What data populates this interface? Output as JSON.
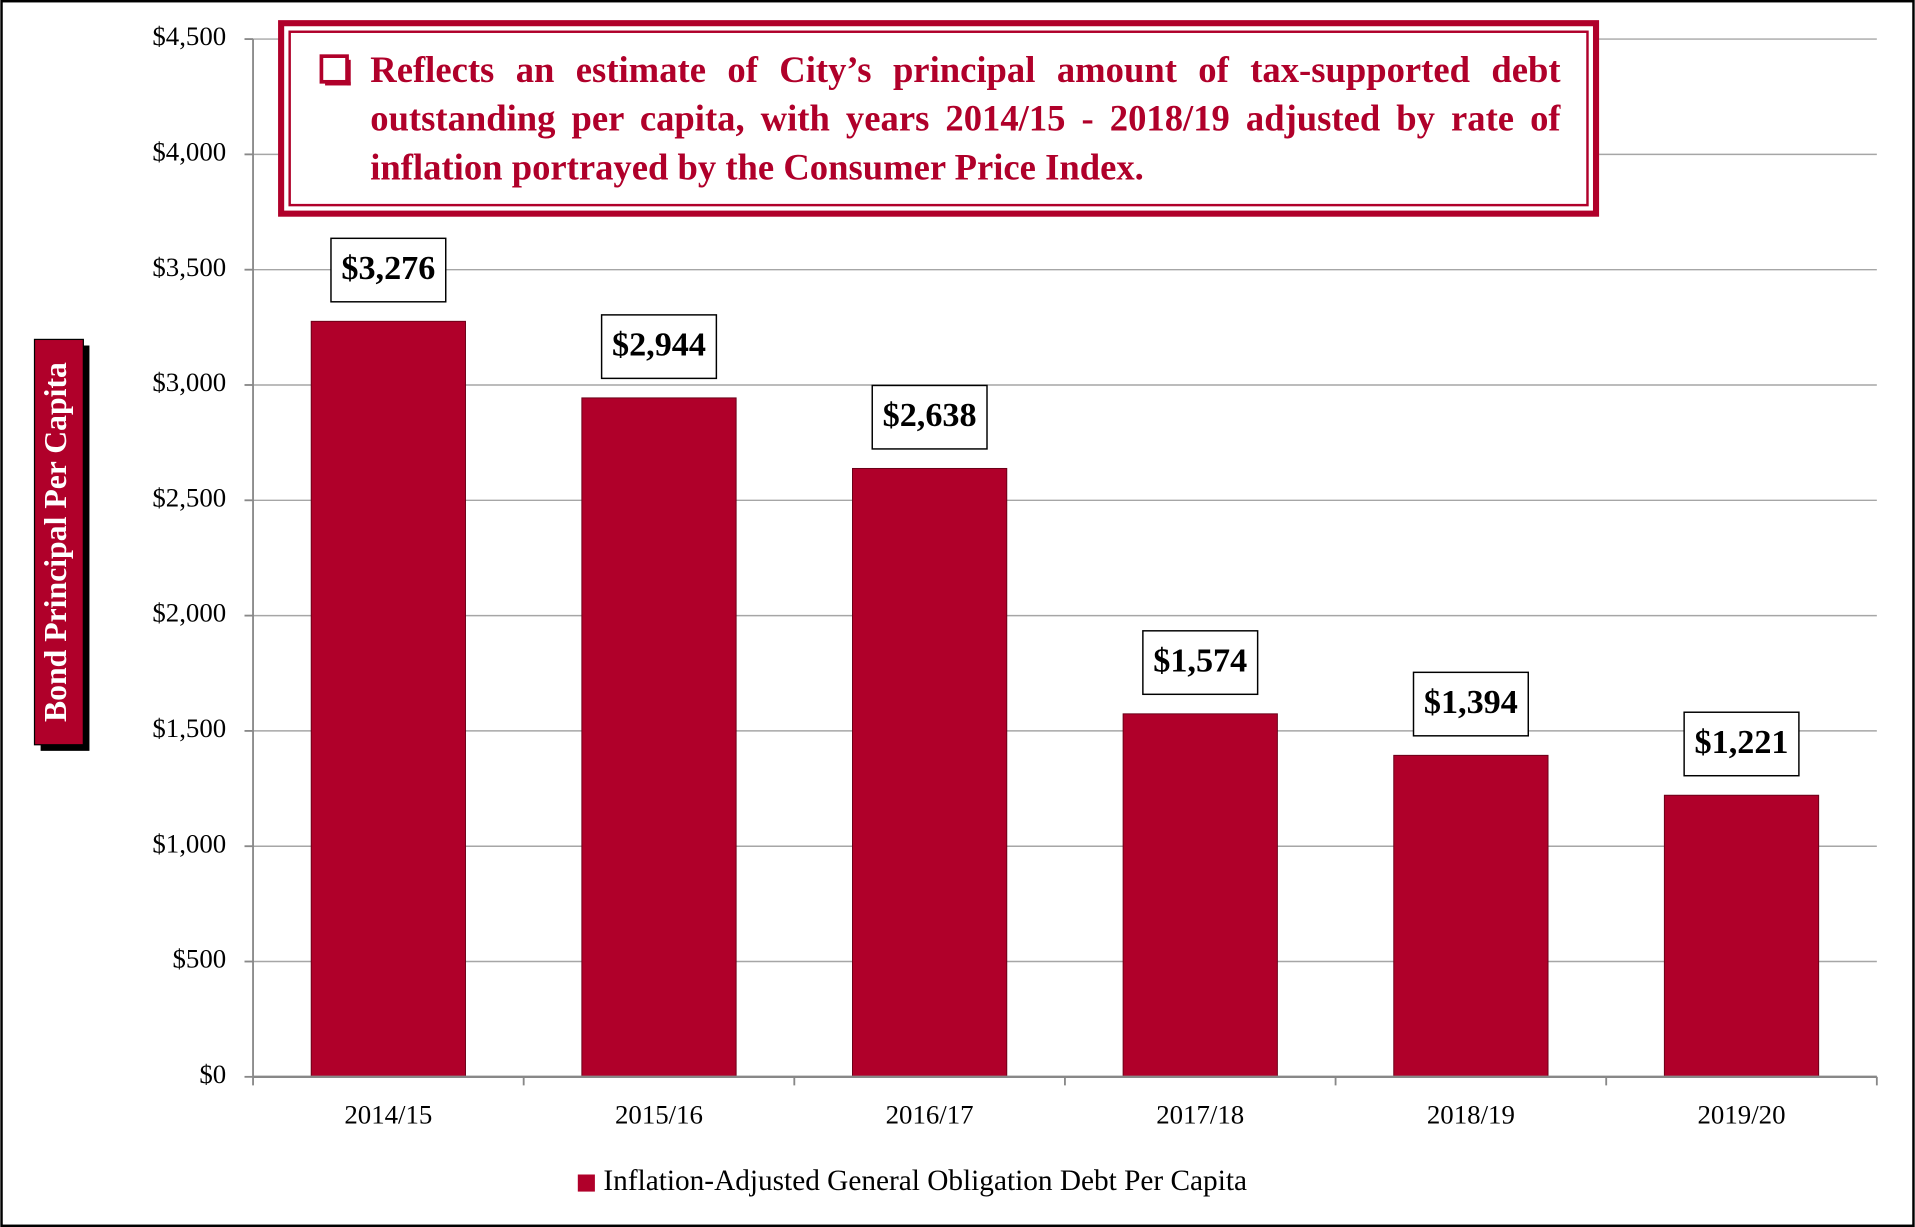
{
  "chart_data": {
    "type": "bar",
    "annotation": "Reflects an estimate of City’s principal amount of tax-supported debt outstanding per capita, with years 2014/15 - 2018/19 adjusted by rate of inflation portrayed by the Consumer Price Index.",
    "y_label": "Bond Principal Per Capita",
    "categories": [
      "2014/15",
      "2015/16",
      "2016/17",
      "2017/18",
      "2018/19",
      "2019/20"
    ],
    "series": [
      {
        "name": "Inflation-Adjusted General Obligation Debt Per Capita",
        "color": "#b0002a",
        "values": [
          3276,
          2944,
          2638,
          1574,
          1394,
          1221
        ],
        "value_labels": [
          "$3,276",
          "$2,944",
          "$2,638",
          "$1,574",
          "$1,394",
          "$1,221"
        ]
      }
    ],
    "ylim": [
      0,
      4500
    ],
    "yticks": [
      {
        "value": 0,
        "label": "$0"
      },
      {
        "value": 500,
        "label": "$500"
      },
      {
        "value": 1000,
        "label": "$1,000"
      },
      {
        "value": 1500,
        "label": "$1,500"
      },
      {
        "value": 2000,
        "label": "$2,000"
      },
      {
        "value": 2500,
        "label": "$2,500"
      },
      {
        "value": 3000,
        "label": "$3,000"
      },
      {
        "value": 3500,
        "label": "$3,500"
      },
      {
        "value": 4000,
        "label": "$4,000"
      },
      {
        "value": 4500,
        "label": "$4,500"
      }
    ],
    "grid": true,
    "legend": "bottom"
  }
}
